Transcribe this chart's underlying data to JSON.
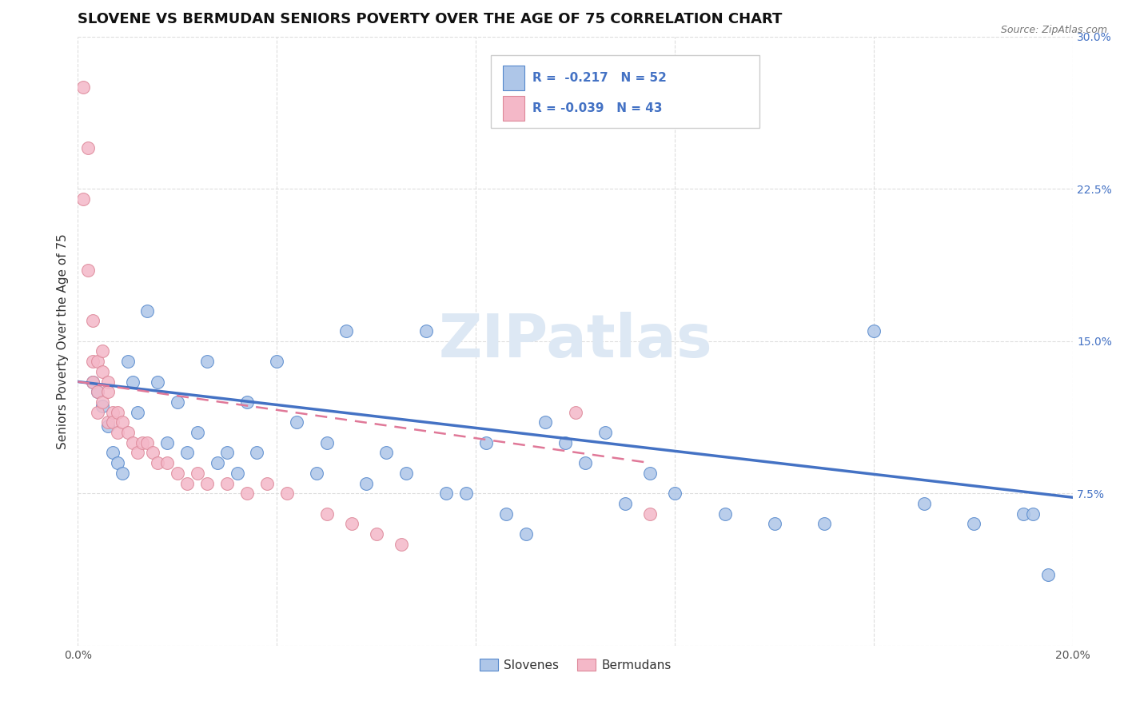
{
  "title": "SLOVENE VS BERMUDAN SENIORS POVERTY OVER THE AGE OF 75 CORRELATION CHART",
  "source": "Source: ZipAtlas.com",
  "ylabel": "Seniors Poverty Over the Age of 75",
  "xlim": [
    0.0,
    0.2
  ],
  "ylim": [
    0.0,
    0.3
  ],
  "xticks": [
    0.0,
    0.04,
    0.08,
    0.12,
    0.16,
    0.2
  ],
  "yticks": [
    0.0,
    0.075,
    0.15,
    0.225,
    0.3
  ],
  "slovene_color": "#aec6e8",
  "slovene_edge": "#5588cc",
  "bermudan_color": "#f4b8c8",
  "bermudan_edge": "#dd8899",
  "line_blue": "#4472c4",
  "line_pink": "#e07898",
  "slovenes_x": [
    0.003,
    0.004,
    0.005,
    0.006,
    0.007,
    0.008,
    0.009,
    0.01,
    0.011,
    0.012,
    0.014,
    0.016,
    0.018,
    0.02,
    0.022,
    0.024,
    0.026,
    0.028,
    0.03,
    0.032,
    0.034,
    0.036,
    0.04,
    0.044,
    0.048,
    0.05,
    0.054,
    0.058,
    0.062,
    0.066,
    0.07,
    0.074,
    0.078,
    0.082,
    0.086,
    0.09,
    0.094,
    0.098,
    0.102,
    0.106,
    0.11,
    0.115,
    0.12,
    0.13,
    0.14,
    0.15,
    0.16,
    0.17,
    0.18,
    0.19,
    0.192,
    0.195
  ],
  "slovenes_y": [
    0.13,
    0.125,
    0.118,
    0.108,
    0.095,
    0.09,
    0.085,
    0.14,
    0.13,
    0.115,
    0.165,
    0.13,
    0.1,
    0.12,
    0.095,
    0.105,
    0.14,
    0.09,
    0.095,
    0.085,
    0.12,
    0.095,
    0.14,
    0.11,
    0.085,
    0.1,
    0.155,
    0.08,
    0.095,
    0.085,
    0.155,
    0.075,
    0.075,
    0.1,
    0.065,
    0.055,
    0.11,
    0.1,
    0.09,
    0.105,
    0.07,
    0.085,
    0.075,
    0.065,
    0.06,
    0.06,
    0.155,
    0.07,
    0.06,
    0.065,
    0.065,
    0.035
  ],
  "bermudans_x": [
    0.001,
    0.001,
    0.002,
    0.002,
    0.003,
    0.003,
    0.003,
    0.004,
    0.004,
    0.004,
    0.005,
    0.005,
    0.005,
    0.006,
    0.006,
    0.006,
    0.007,
    0.007,
    0.008,
    0.008,
    0.009,
    0.01,
    0.011,
    0.012,
    0.013,
    0.014,
    0.015,
    0.016,
    0.018,
    0.02,
    0.022,
    0.024,
    0.026,
    0.03,
    0.034,
    0.038,
    0.042,
    0.05,
    0.055,
    0.06,
    0.065,
    0.1,
    0.115
  ],
  "bermudans_y": [
    0.275,
    0.22,
    0.245,
    0.185,
    0.16,
    0.14,
    0.13,
    0.14,
    0.125,
    0.115,
    0.145,
    0.135,
    0.12,
    0.13,
    0.125,
    0.11,
    0.115,
    0.11,
    0.105,
    0.115,
    0.11,
    0.105,
    0.1,
    0.095,
    0.1,
    0.1,
    0.095,
    0.09,
    0.09,
    0.085,
    0.08,
    0.085,
    0.08,
    0.08,
    0.075,
    0.08,
    0.075,
    0.065,
    0.06,
    0.055,
    0.05,
    0.115,
    0.065
  ],
  "blue_line_x0": 0.0,
  "blue_line_y0": 0.13,
  "blue_line_x1": 0.2,
  "blue_line_y1": 0.073,
  "pink_line_x0": 0.0,
  "pink_line_y0": 0.13,
  "pink_line_x1": 0.115,
  "pink_line_y1": 0.09,
  "background_color": "#ffffff",
  "grid_color": "#dddddd",
  "title_fontsize": 13,
  "axis_label_fontsize": 11,
  "tick_fontsize": 10,
  "legend_fontsize": 12,
  "tick_color_y": "#4472c4",
  "tick_color_x": "#555555"
}
